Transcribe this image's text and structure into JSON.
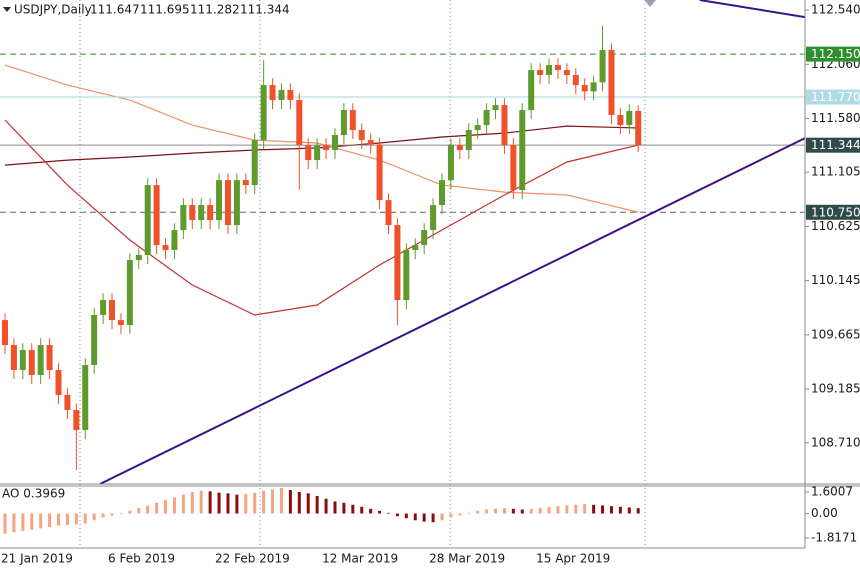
{
  "chart_data": {
    "type": "candlestick",
    "symbol": "USDJPY,Daily",
    "categories": [
      "21 Jan 2019",
      null,
      null,
      null,
      null,
      null,
      null,
      null,
      null,
      null,
      null,
      null,
      "6 Feb 2019",
      null,
      null,
      null,
      null,
      null,
      null,
      null,
      null,
      null,
      null,
      null,
      "22 Feb 2019",
      null,
      null,
      null,
      null,
      null,
      null,
      null,
      null,
      null,
      null,
      null,
      "12 Mar 2019",
      null,
      null,
      null,
      null,
      null,
      null,
      null,
      null,
      null,
      null,
      null,
      "28 Mar 2019",
      null,
      null,
      null,
      null,
      null,
      null,
      null,
      null,
      null,
      null,
      null,
      "15 Apr 2019",
      null,
      null,
      null,
      null,
      null,
      null,
      null,
      null,
      null,
      null,
      null
    ],
    "open": [
      109.796,
      109.575,
      109.354,
      109.531,
      109.31,
      109.575,
      109.354,
      109.133,
      109.0,
      108.823,
      109.398,
      109.841,
      109.973,
      109.796,
      109.752,
      110.327,
      110.372,
      110.991,
      110.46,
      110.416,
      110.593,
      110.814,
      110.681,
      110.814,
      110.681,
      111.035,
      110.637,
      111.035,
      110.991,
      111.389,
      111.876,
      111.743,
      111.832,
      111.743,
      111.345,
      111.212,
      111.345,
      111.301,
      111.434,
      111.655,
      111.478,
      111.389,
      111.35,
      110.858,
      110.637,
      109.973,
      110.416,
      110.46,
      110.593,
      110.814,
      111.035,
      111.345,
      111.301,
      111.478,
      111.522,
      111.655,
      111.699,
      111.345,
      110.947,
      111.655,
      112.009,
      111.965,
      112.053,
      112.009,
      111.965,
      111.876,
      111.82,
      111.9,
      112.186,
      111.611,
      111.522,
      111.647
    ],
    "high": [
      109.856,
      109.635,
      109.591,
      109.591,
      109.635,
      109.635,
      109.414,
      109.193,
      109.06,
      109.458,
      109.901,
      110.033,
      110.033,
      109.856,
      110.387,
      110.432,
      111.051,
      111.051,
      110.52,
      110.653,
      110.874,
      110.874,
      110.874,
      110.874,
      111.095,
      111.095,
      111.095,
      111.095,
      111.449,
      112.1,
      111.936,
      111.892,
      111.892,
      111.803,
      111.405,
      111.405,
      111.405,
      111.494,
      111.715,
      111.715,
      111.538,
      111.449,
      111.41,
      110.918,
      110.697,
      110.476,
      110.52,
      110.653,
      110.874,
      111.095,
      111.405,
      111.405,
      111.538,
      111.582,
      111.715,
      111.759,
      111.759,
      111.405,
      111.715,
      112.069,
      112.069,
      112.113,
      112.113,
      112.069,
      112.025,
      111.936,
      111.96,
      112.4,
      112.246,
      111.671,
      111.707,
      111.695
    ],
    "low": [
      109.495,
      109.274,
      109.274,
      109.23,
      109.23,
      109.274,
      109.053,
      108.92,
      108.469,
      108.743,
      109.318,
      109.761,
      109.716,
      109.672,
      109.672,
      110.247,
      110.292,
      110.38,
      110.336,
      110.336,
      110.513,
      110.601,
      110.601,
      110.601,
      110.601,
      110.557,
      110.557,
      110.911,
      110.911,
      111.309,
      111.663,
      111.663,
      111.663,
      110.95,
      111.132,
      111.132,
      111.221,
      111.221,
      111.354,
      111.398,
      111.309,
      111.27,
      110.778,
      110.557,
      109.75,
      109.893,
      110.336,
      110.38,
      110.513,
      110.734,
      110.955,
      111.221,
      111.221,
      111.398,
      111.442,
      111.575,
      111.265,
      110.867,
      110.867,
      111.575,
      111.885,
      111.885,
      111.929,
      111.885,
      111.796,
      111.74,
      111.74,
      111.82,
      111.531,
      111.442,
      111.442,
      111.282
    ],
    "close": [
      109.575,
      109.354,
      109.531,
      109.31,
      109.575,
      109.354,
      109.133,
      109.0,
      108.823,
      109.398,
      109.841,
      109.973,
      109.796,
      109.752,
      110.327,
      110.372,
      110.991,
      110.46,
      110.416,
      110.593,
      110.814,
      110.681,
      110.814,
      110.681,
      111.035,
      110.637,
      111.035,
      110.991,
      111.389,
      111.876,
      111.743,
      111.832,
      111.743,
      111.345,
      111.212,
      111.345,
      111.301,
      111.434,
      111.655,
      111.478,
      111.389,
      111.35,
      110.858,
      110.637,
      109.973,
      110.416,
      110.46,
      110.593,
      110.814,
      111.035,
      111.345,
      111.301,
      111.478,
      111.522,
      111.655,
      111.699,
      111.345,
      110.947,
      111.655,
      112.009,
      111.965,
      112.053,
      112.009,
      111.965,
      111.876,
      111.82,
      111.9,
      112.186,
      111.611,
      111.522,
      111.647,
      111.344
    ],
    "up_color": "#5e9a2c",
    "down_color": "#f0502a",
    "xlim": [
      -0.56,
      89.7
    ],
    "ylim": [
      108.345,
      112.629
    ],
    "yticks": [
      {
        "value": 112.54,
        "label": "112.540"
      },
      {
        "value": 112.06,
        "label": "112.060"
      },
      {
        "value": 111.58,
        "label": "111.580"
      },
      111.105,
      110.625,
      110.145,
      109.665,
      109.185,
      {
        "value": 108.71,
        "label": "108.710"
      }
    ],
    "lines": [
      {
        "color": "#7b1214",
        "x": [
          0,
          7,
          14,
          21,
          28,
          35,
          42,
          49,
          56,
          63,
          71
        ],
        "values": [
          111.168,
          111.212,
          111.239,
          111.274,
          111.301,
          111.319,
          111.363,
          111.416,
          111.451,
          111.513,
          111.496
        ]
      },
      {
        "color": "#f29065",
        "x": [
          0,
          7,
          14,
          21,
          28,
          35,
          42,
          49,
          56,
          63,
          71
        ],
        "values": [
          112.053,
          111.876,
          111.743,
          111.522,
          111.389,
          111.363,
          111.212,
          110.991,
          110.929,
          110.903,
          110.752
        ]
      },
      {
        "color": "#c43030",
        "x": [
          0,
          7,
          14,
          21,
          28,
          35,
          42,
          49,
          56,
          63,
          71
        ],
        "values": [
          111.567,
          110.991,
          110.504,
          110.106,
          109.841,
          109.929,
          110.283,
          110.593,
          110.903,
          111.195,
          111.345
        ]
      }
    ],
    "trendlines": [
      {
        "color": "#3b128c",
        "x": [
          10.65,
          89.7
        ],
        "values": [
          108.345,
          111.407
        ]
      },
      {
        "color": "#3b128c",
        "x": [
          77.9,
          89.7
        ],
        "values": [
          112.629,
          112.478
        ]
      }
    ],
    "price_lines": [
      {
        "value": {
          "value": 112.15,
          "label": "112.150"
        },
        "color": "#2f8f2f",
        "dashed": true,
        "label_color": "#2f8f2f"
      },
      {
        "value": {
          "value": 111.77,
          "label": "111.770"
        },
        "color": "#a9d6df",
        "dashed": false,
        "label_color": "#afdbe5"
      },
      {
        "value": 111.344,
        "color": "#8c8c8c",
        "dashed": false,
        "label_color": "#2f4a4a"
      },
      {
        "value": {
          "value": 110.75,
          "label": "110.750"
        },
        "color": "#666666",
        "dashed": true,
        "label_color": "#2f4a4a"
      }
    ],
    "indicator": {
      "type": "bar",
      "title": "AO 0.3969",
      "values": [
        -1.5,
        -1.4,
        -1.3,
        -1.2,
        -1.1,
        -1.0,
        -0.9,
        -0.85,
        -0.8,
        -0.75,
        -0.5,
        -0.3,
        -0.15,
        0.05,
        0.2,
        0.4,
        0.6,
        0.8,
        1.0,
        1.2,
        1.4,
        1.6,
        1.7,
        1.65,
        1.55,
        1.5,
        1.4,
        1.45,
        1.55,
        1.7,
        1.8,
        1.9,
        1.75,
        1.6,
        1.5,
        1.3,
        1.1,
        0.9,
        0.8,
        0.65,
        0.5,
        0.35,
        0.2,
        0.05,
        -0.2,
        -0.35,
        -0.5,
        -0.6,
        -0.65,
        -0.5,
        -0.3,
        -0.15,
        0.05,
        0.2,
        0.3,
        0.35,
        0.4,
        0.35,
        0.3,
        0.35,
        0.4,
        0.5,
        0.55,
        0.6,
        0.65,
        0.7,
        0.65,
        0.6,
        0.55,
        0.5,
        0.45,
        0.3969
      ],
      "up_color": "#f4a484",
      "down_color": "#8a0c10",
      "ylim": [
        -2.56,
        2.046
      ],
      "yticks": [
        1.6007,
        {
          "value": 0,
          "label": "0.00"
        },
        -1.8171
      ]
    }
  }
}
